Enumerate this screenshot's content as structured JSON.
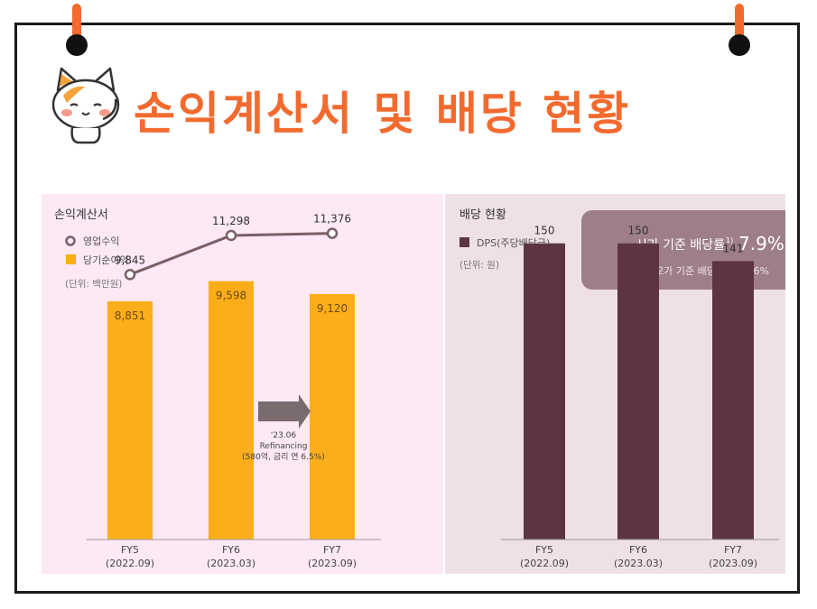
{
  "title": "손익계산서 및 배당 현황",
  "colors": {
    "accent": "#f26a2e",
    "bar_orange": "#fcae1a",
    "bar_dps": "#5c3540",
    "line": "#7a6065",
    "yield_box": "#9e7f89"
  },
  "chart_data": [
    {
      "type": "bar",
      "panel_title": "손익계산서",
      "unit_label": "(단위: 백만원)",
      "categories": [
        "FY5",
        "FY6",
        "FY7"
      ],
      "category_dates": [
        "(2022.09)",
        "(2023.03)",
        "(2023.09)"
      ],
      "series": [
        {
          "name": "당기순이익",
          "type": "bar",
          "values": [
            8851,
            9598,
            9120
          ],
          "value_labels": [
            "8,851",
            "9,598",
            "9,120"
          ]
        },
        {
          "name": "영업수익",
          "type": "line",
          "values": [
            9845,
            11298,
            11376
          ],
          "value_labels": [
            "9,845",
            "11,298",
            "11,376"
          ]
        }
      ],
      "ylim": [
        0,
        12000
      ],
      "annotation": {
        "lines": [
          "'23.06",
          "Refinancing",
          "(580억, 금리 연 6.5%)"
        ]
      }
    },
    {
      "type": "bar",
      "panel_title": "배당 현황",
      "unit_label": "(단위: 원)",
      "categories": [
        "FY5",
        "FY6",
        "FY7"
      ],
      "category_dates": [
        "(2022.09)",
        "(2023.03)",
        "(2023.09)"
      ],
      "series": [
        {
          "name": "DPS(주당배당금)",
          "values": [
            150,
            150,
            141
          ],
          "value_labels": [
            "150",
            "150",
            "141"
          ]
        }
      ],
      "ylim": [
        0,
        175
      ],
      "yield_box": {
        "market_label": "시가 기준 배당률",
        "market_sup": "1)",
        "market_value": "7.9%",
        "ipo_label": "공모가 기준 배당률",
        "ipo_sup": "2)",
        "ipo_value": "5.6%"
      }
    }
  ]
}
